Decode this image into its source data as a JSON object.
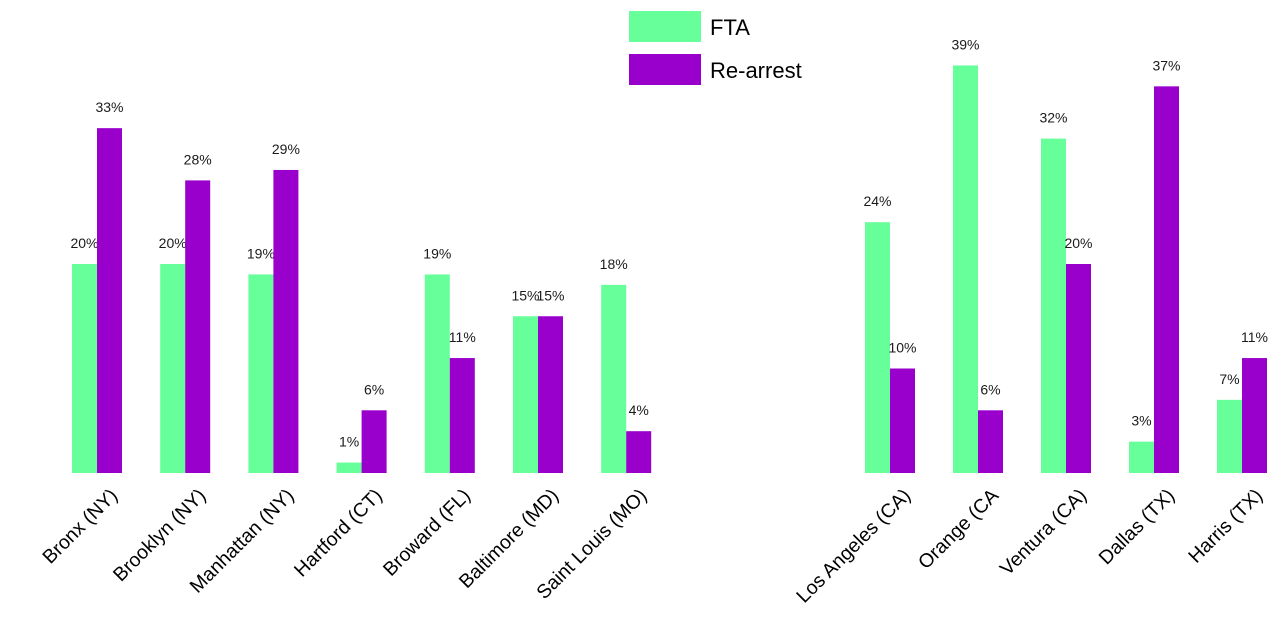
{
  "chart_data": {
    "type": "bar",
    "title": "",
    "xlabel": "",
    "ylabel": "",
    "ylim": [
      0,
      40
    ],
    "grid": false,
    "legend": {
      "position": "top-center",
      "entries": [
        {
          "label": "FTA",
          "color": "#66ff99"
        },
        {
          "label": "Re-arrest",
          "color": "#9900cc"
        }
      ]
    },
    "groups": [
      {
        "categories": [
          "Bronx (NY)",
          "Brooklyn (NY)",
          "Manhattan (NY)",
          "Hartford (CT)",
          "Broward (FL)",
          "Baltimore (MD)",
          "Saint Louis (MO)"
        ],
        "series": [
          {
            "name": "FTA",
            "values": [
              20,
              20,
              19,
              1,
              19,
              15,
              18
            ],
            "labels": [
              "20%",
              "20%",
              "19%",
              "1%",
              "19%",
              "15%",
              "18%"
            ]
          },
          {
            "name": "Re-arrest",
            "values": [
              33,
              28,
              29,
              6,
              11,
              15,
              4
            ],
            "labels": [
              "33%",
              "28%",
              "29%",
              "6%",
              "11%",
              "15%",
              "4%"
            ]
          }
        ]
      },
      {
        "categories": [
          "Los Angeles (CA)",
          "Orange (CA",
          "Ventura (CA)",
          "Dallas (TX)",
          "Harris (TX)"
        ],
        "series": [
          {
            "name": "FTA",
            "values": [
              24,
              39,
              32,
              3,
              7
            ],
            "labels": [
              "24%",
              "39%",
              "32%",
              "3%",
              "7%"
            ]
          },
          {
            "name": "Re-arrest",
            "values": [
              10,
              6,
              20,
              37,
              11
            ],
            "labels": [
              "10%",
              "6%",
              "20%",
              "37%",
              "11%"
            ]
          }
        ]
      }
    ]
  }
}
